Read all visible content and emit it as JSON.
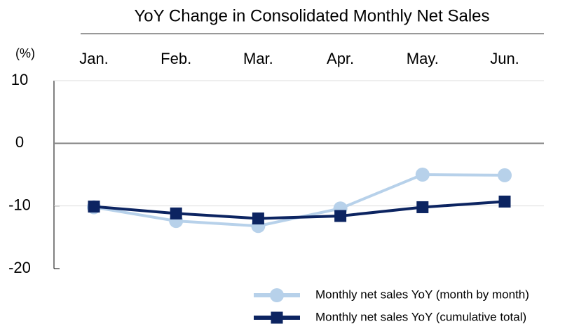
{
  "chart_data": {
    "type": "line",
    "title": "YoY Change in Consolidated Monthly Net Sales",
    "y_unit": "(%)",
    "categories": [
      "Jan.",
      "Feb.",
      "Mar.",
      "Apr.",
      "May.",
      "Jun."
    ],
    "series": [
      {
        "name": "Monthly net sales YoY (month by month)",
        "color": "#b7d1ea",
        "marker": "circle",
        "values": [
          -10.2,
          -12.4,
          -13.2,
          -10.4,
          -5.0,
          -5.1
        ]
      },
      {
        "name": "Monthly net sales YoY (cumulative total)",
        "color": "#0c2461",
        "marker": "square",
        "values": [
          -10.1,
          -11.2,
          -12.0,
          -11.6,
          -10.2,
          -9.3
        ]
      }
    ],
    "ylim": [
      -20,
      10
    ],
    "yticks": [
      -20,
      -10,
      0,
      10
    ],
    "grid": true,
    "legend": "bottom-right"
  }
}
